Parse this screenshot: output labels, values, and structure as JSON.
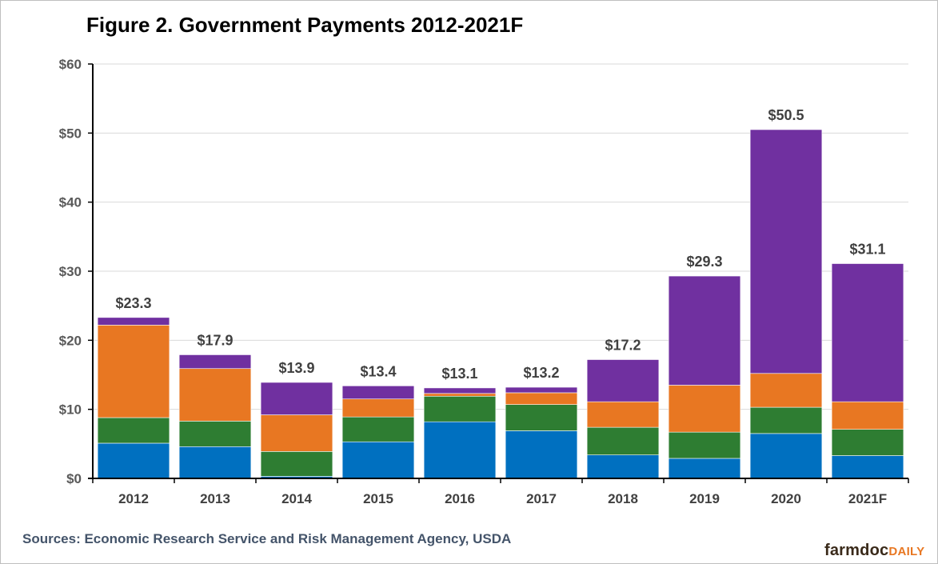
{
  "title": "Figure 2. Government Payments 2012-2021F",
  "source": "Sources: Economic Research Service and Risk Management Agency, USDA",
  "logo": {
    "part1": "farmdoc",
    "part2": "DAILY"
  },
  "chart_data": {
    "type": "bar",
    "stacked": true,
    "title": "Figure 2. Government Payments 2012-2021F",
    "xlabel": "",
    "ylabel": "",
    "ylim": [
      0,
      60
    ],
    "yticks": [
      0,
      10,
      20,
      30,
      40,
      50,
      60
    ],
    "ytick_labels": [
      "$0",
      "$10",
      "$20",
      "$30",
      "$40",
      "$50",
      "$60"
    ],
    "grid": true,
    "categories": [
      "2012",
      "2013",
      "2014",
      "2015",
      "2016",
      "2017",
      "2018",
      "2019",
      "2020",
      "2021F"
    ],
    "series": [
      {
        "color": "#0070c0",
        "values": [
          5.1,
          4.6,
          0.3,
          5.3,
          8.2,
          6.9,
          3.4,
          2.9,
          6.5,
          3.3
        ]
      },
      {
        "color": "#2e7d32",
        "values": [
          3.7,
          3.7,
          3.6,
          3.6,
          3.7,
          3.8,
          4.0,
          3.8,
          3.8,
          3.8
        ]
      },
      {
        "color": "#e87722",
        "values": [
          13.4,
          7.6,
          5.3,
          2.6,
          0.4,
          1.7,
          3.7,
          6.8,
          4.9,
          4.0
        ]
      },
      {
        "color": "#7030a0",
        "values": [
          1.1,
          2.0,
          4.7,
          1.9,
          0.8,
          0.8,
          6.1,
          15.8,
          35.3,
          20.0
        ]
      }
    ],
    "totals": [
      "$23.3",
      "$17.9",
      "$13.9",
      "$13.4",
      "$13.1",
      "$13.2",
      "$17.2",
      "$29.3",
      "$50.5",
      "$31.1"
    ],
    "total_values": [
      23.3,
      17.9,
      13.9,
      13.4,
      13.1,
      13.2,
      17.2,
      29.3,
      50.5,
      31.1
    ]
  }
}
